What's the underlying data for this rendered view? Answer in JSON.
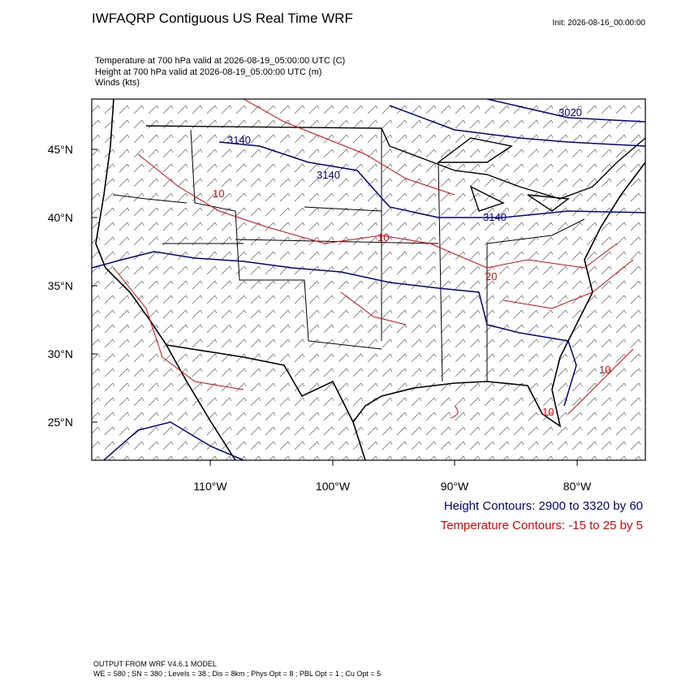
{
  "header": {
    "title": "IWFAQRP Contiguous US Real Time WRF",
    "init": "Init: 2026-08-16_00:00:00"
  },
  "fields": [
    "Temperature at 700 hPa valid at 2026-08-19_05:00:00 UTC   (C)",
    "Height at 700 hPa valid at 2026-08-19_05:00:00 UTC   (m)",
    "Winds   (kts)"
  ],
  "map": {
    "lat_labels": [
      "45°N",
      "40°N",
      "35°N",
      "30°N",
      "25°N"
    ],
    "lon_labels": [
      "110°W",
      "100°W",
      "90°W",
      "80°W"
    ],
    "height_contour_labels": [
      "3020",
      "3140",
      "3140",
      "3140"
    ],
    "temperature_contour_labels": [
      "10",
      "10",
      "20",
      "10",
      "10"
    ]
  },
  "legend": {
    "height": "Height Contours: 2900 to 3320 by 60",
    "temperature": "Temperature Contours: -15 to 25 by 5"
  },
  "footer": {
    "model": "OUTPUT FROM WRF V4.6.1 MODEL",
    "settings": "WE = 580 ; SN = 380 ; Levels = 38 ; Dis = 8km ; Phys Opt = 8 ; PBL Opt = 1 ; Cu Opt = 5"
  }
}
